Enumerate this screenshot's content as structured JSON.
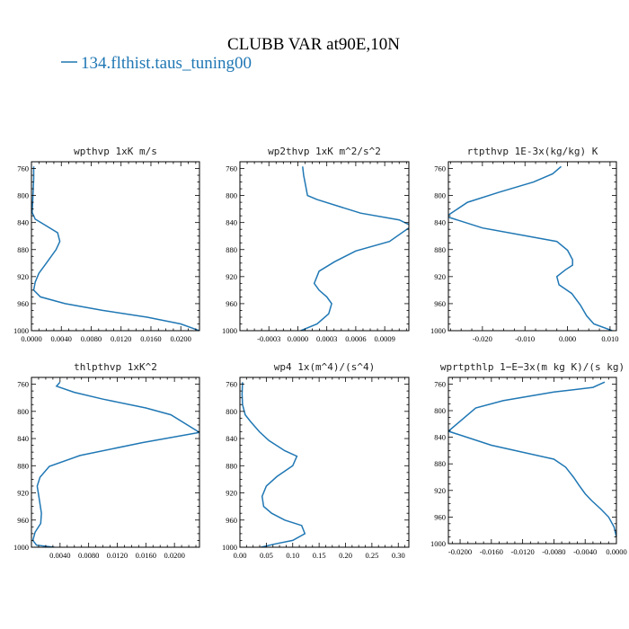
{
  "figure": {
    "title": "CLUBB VAR at90E,10N",
    "legend_label": "134.flthist.taus_tuning00",
    "line_color": "#1f77b4"
  },
  "chart_data": [
    {
      "type": "line",
      "title": "wpthvp  1xK m/s",
      "xlim": [
        0.0,
        0.0225
      ],
      "ylim": [
        1000,
        750
      ],
      "xticks": [
        0.0,
        0.004,
        0.008,
        0.012,
        0.016,
        0.02
      ],
      "xtick_labels": [
        "0.0000",
        "0.0040",
        "0.0080",
        "0.0120",
        "0.0160",
        "0.0200"
      ],
      "yticks": [
        760,
        800,
        840,
        880,
        920,
        960,
        1000
      ],
      "x": [
        0.0003,
        0.0003,
        0.0002,
        0.0001,
        0.0005,
        0.002,
        0.0035,
        0.0038,
        0.0033,
        0.002,
        0.001,
        0.0005,
        0.0003,
        0.0012,
        0.0045,
        0.0095,
        0.0155,
        0.02,
        0.0225
      ],
      "y": [
        757,
        775,
        800,
        825,
        835,
        845,
        855,
        868,
        880,
        900,
        915,
        928,
        940,
        950,
        960,
        970,
        980,
        990,
        1000
      ]
    },
    {
      "type": "line",
      "title": "wp2thvp  1xK m^2/s^2",
      "xlim": [
        -0.0006,
        0.00115
      ],
      "ylim": [
        1000,
        750
      ],
      "xticks": [
        -0.0003,
        0.0,
        0.0003,
        0.0006,
        0.0009
      ],
      "xtick_labels": [
        "-0.0003",
        "0.0000",
        "0.0003",
        "0.0006",
        "0.0009"
      ],
      "yticks": [
        760,
        800,
        840,
        880,
        920,
        960,
        1000
      ],
      "x": [
        5e-05,
        6e-05,
        8e-05,
        0.0001,
        0.0002,
        0.00065,
        0.00105,
        0.00118,
        0.00095,
        0.0006,
        0.00038,
        0.00022,
        0.00017,
        0.00022,
        0.0003,
        0.00035,
        0.00032,
        0.0002,
        3e-05
      ],
      "y": [
        757,
        770,
        785,
        800,
        806,
        826,
        836,
        845,
        868,
        882,
        898,
        912,
        930,
        940,
        950,
        960,
        975,
        990,
        1000
      ]
    },
    {
      "type": "line",
      "title": "rtpthvp  1E-3x(kg/kg) K",
      "xlim": [
        -0.028,
        0.0115
      ],
      "ylim": [
        1000,
        750
      ],
      "xticks": [
        -0.02,
        -0.01,
        0.0,
        0.01
      ],
      "xtick_labels": [
        "-0.020",
        "-0.010",
        "0.000",
        "0.010"
      ],
      "yticks": [
        760,
        800,
        840,
        880,
        920,
        960,
        1000
      ],
      "x": [
        -0.0015,
        -0.0035,
        -0.008,
        -0.016,
        -0.0235,
        -0.0285,
        -0.02,
        -0.0025,
        0.0,
        0.0012,
        0.0012,
        -0.0005,
        -0.0025,
        -0.002,
        0.001,
        0.003,
        0.0045,
        0.0062,
        0.0105
      ],
      "y": [
        757,
        768,
        780,
        795,
        810,
        831,
        848,
        868,
        881,
        895,
        903,
        910,
        920,
        932,
        945,
        962,
        978,
        990,
        1000
      ]
    },
    {
      "type": "line",
      "title": "thlpthvp  1xK^2",
      "xlim": [
        0.0,
        0.0235
      ],
      "ylim": [
        1000,
        750
      ],
      "xticks": [
        0.004,
        0.008,
        0.012,
        0.016,
        0.02
      ],
      "xtick_labels": [
        "0.0040",
        "0.0080",
        "0.0120",
        "0.0160",
        "0.0200"
      ],
      "yticks": [
        760,
        800,
        840,
        880,
        920,
        960,
        1000
      ],
      "x": [
        0.004,
        0.0035,
        0.006,
        0.01,
        0.016,
        0.0195,
        0.0235,
        0.0155,
        0.0068,
        0.0025,
        0.0012,
        0.0008,
        0.0011,
        0.0014,
        0.0013,
        0.0005,
        0.0002,
        0.0007,
        0.0032
      ],
      "y": [
        757,
        763,
        772,
        782,
        795,
        805,
        831,
        846,
        865,
        881,
        897,
        910,
        930,
        950,
        965,
        978,
        990,
        997,
        1000
      ]
    },
    {
      "type": "line",
      "title": "wp4  1x(m^4)/(s^4)",
      "xlim": [
        0.0,
        0.32
      ],
      "ylim": [
        1000,
        750
      ],
      "xticks": [
        0.0,
        0.05,
        0.1,
        0.15,
        0.2,
        0.25,
        0.3
      ],
      "xtick_labels": [
        "0.00",
        "0.05",
        "0.10",
        "0.15",
        "0.20",
        "0.25",
        "0.30"
      ],
      "yticks": [
        760,
        800,
        840,
        880,
        920,
        960,
        1000
      ],
      "x": [
        0.005,
        0.004,
        0.005,
        0.01,
        0.02,
        0.037,
        0.055,
        0.085,
        0.108,
        0.1,
        0.07,
        0.05,
        0.042,
        0.045,
        0.06,
        0.085,
        0.117,
        0.123,
        0.1,
        0.068,
        0.04
      ],
      "y": [
        757,
        775,
        790,
        805,
        815,
        830,
        843,
        858,
        866,
        880,
        896,
        910,
        925,
        940,
        950,
        960,
        968,
        980,
        990,
        995,
        1000
      ]
    },
    {
      "type": "line",
      "title": "wprtpthlp  1−E−3x(m kg K)/(s kg)",
      "xlim": [
        -0.0215,
        0.0
      ],
      "ylim": [
        1000,
        750
      ],
      "xticks": [
        -0.02,
        -0.016,
        -0.012,
        -0.008,
        -0.004,
        0.0
      ],
      "xtick_labels": [
        "-0.0200",
        "-0.0160",
        "-0.0120",
        "-0.0080",
        "-0.0040",
        "0.0000"
      ],
      "yticks": [
        760,
        800,
        840,
        880,
        920,
        960,
        1000
      ],
      "x": [
        -0.0015,
        -0.003,
        -0.008,
        -0.0145,
        -0.018,
        -0.0215,
        -0.016,
        -0.008,
        -0.0065,
        -0.0055,
        -0.0048,
        -0.004,
        -0.0032,
        -0.002,
        -0.001,
        -0.0003,
        0.0
      ],
      "y": [
        757,
        765,
        772,
        785,
        796,
        831,
        852,
        873,
        885,
        900,
        912,
        925,
        935,
        948,
        960,
        975,
        990
      ]
    }
  ]
}
